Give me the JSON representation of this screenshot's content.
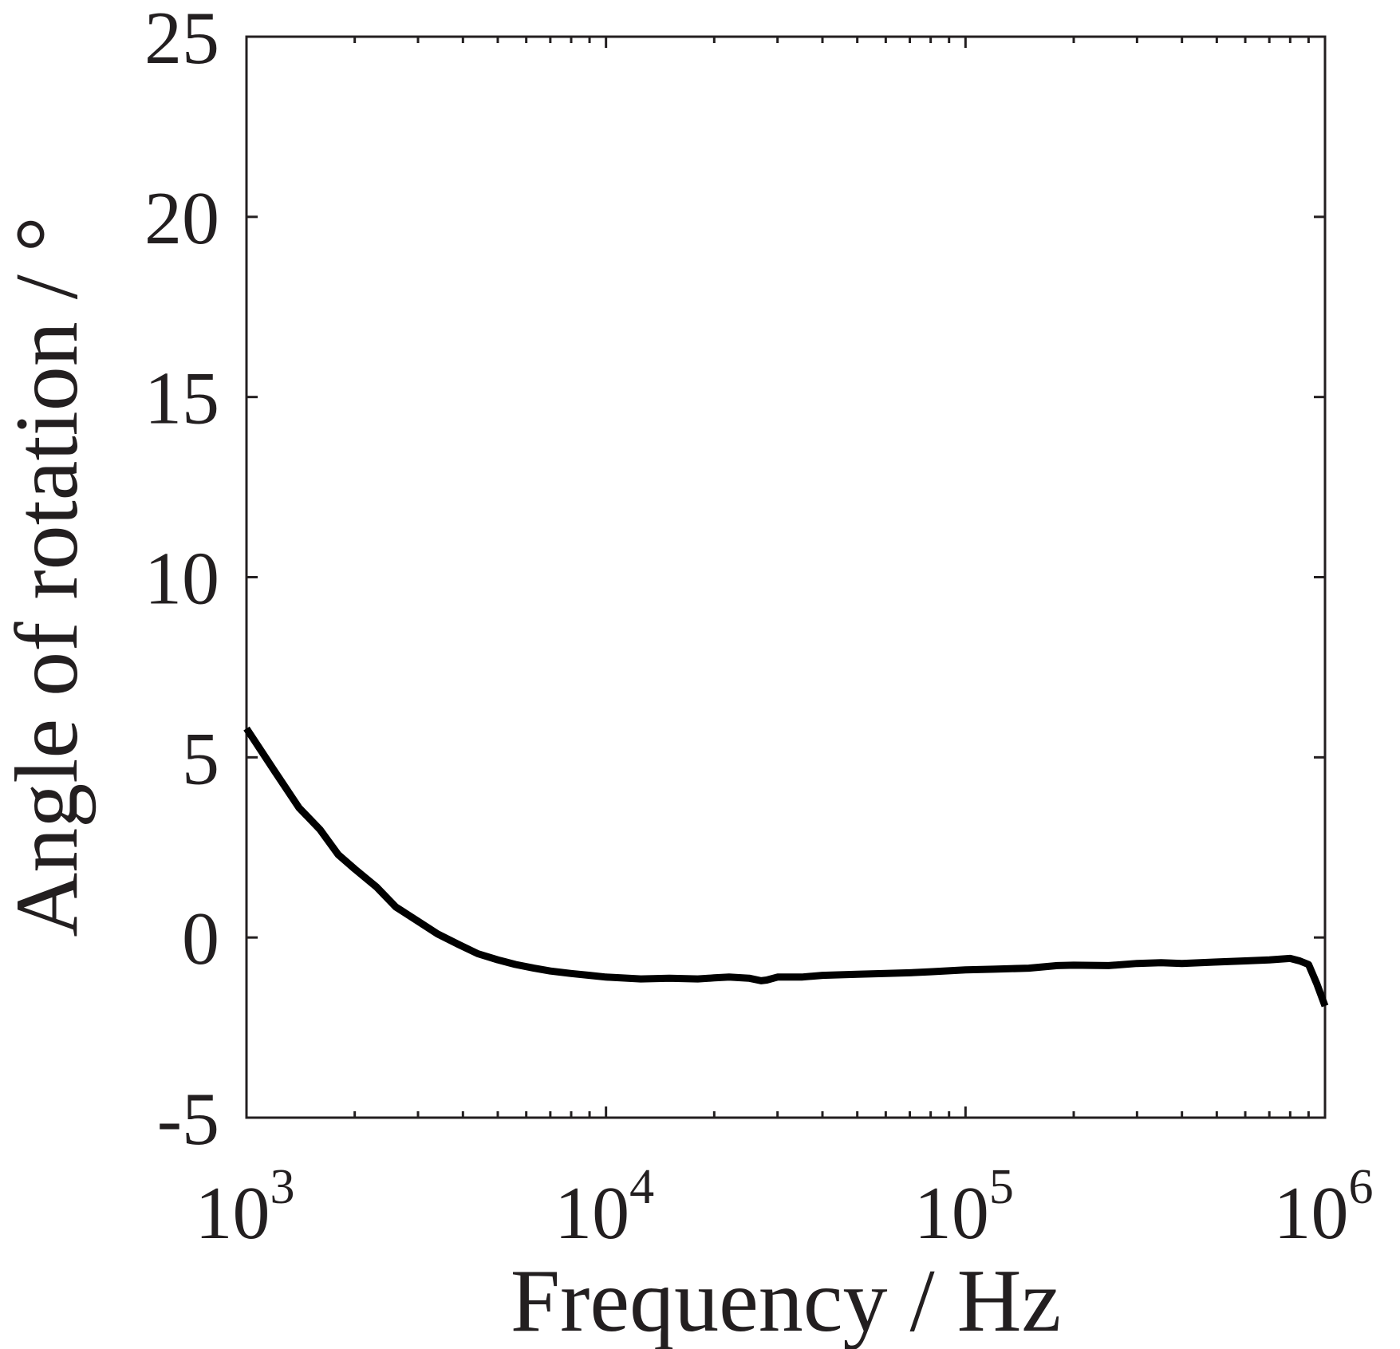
{
  "chart_data": {
    "type": "line",
    "xlabel": "Frequency / Hz",
    "ylabel": "Angle of rotation / °",
    "x_scale": "log",
    "xlim": [
      1000,
      1000000
    ],
    "ylim": [
      -5,
      25
    ],
    "x_ticks": [
      {
        "value": 1000,
        "base": "10",
        "exp": "3"
      },
      {
        "value": 10000,
        "base": "10",
        "exp": "4"
      },
      {
        "value": 100000,
        "base": "10",
        "exp": "5"
      },
      {
        "value": 1000000,
        "base": "10",
        "exp": "6"
      }
    ],
    "y_ticks": [
      {
        "value": -5,
        "label": "-5"
      },
      {
        "value": 0,
        "label": "0"
      },
      {
        "value": 5,
        "label": "5"
      },
      {
        "value": 10,
        "label": "10"
      },
      {
        "value": 15,
        "label": "15"
      },
      {
        "value": 20,
        "label": "20"
      },
      {
        "value": 25,
        "label": "25"
      }
    ],
    "grid": false,
    "legend": "none",
    "series": [
      {
        "color": "#000000",
        "x": [
          1000,
          1200,
          1400,
          1600,
          1800,
          2000,
          2300,
          2600,
          3000,
          3400,
          3900,
          4400,
          5000,
          5600,
          6300,
          7000,
          8000,
          9000,
          10000,
          11000,
          12500,
          15000,
          18000,
          20000,
          22000,
          25000,
          27000,
          28000,
          30000,
          35000,
          40000,
          50000,
          60000,
          70000,
          80000,
          100000,
          120000,
          150000,
          180000,
          200000,
          250000,
          300000,
          350000,
          400000,
          500000,
          600000,
          700000,
          800000,
          850000,
          900000,
          950000,
          1000000
        ],
        "y": [
          5.8,
          4.6,
          3.6,
          3.0,
          2.3,
          1.9,
          1.4,
          0.85,
          0.45,
          0.1,
          -0.2,
          -0.45,
          -0.62,
          -0.75,
          -0.85,
          -0.93,
          -1.0,
          -1.05,
          -1.1,
          -1.12,
          -1.15,
          -1.13,
          -1.15,
          -1.12,
          -1.1,
          -1.13,
          -1.2,
          -1.18,
          -1.1,
          -1.1,
          -1.05,
          -1.02,
          -1.0,
          -0.98,
          -0.95,
          -0.9,
          -0.88,
          -0.85,
          -0.78,
          -0.77,
          -0.78,
          -0.72,
          -0.7,
          -0.72,
          -0.68,
          -0.65,
          -0.62,
          -0.58,
          -0.65,
          -0.75,
          -1.3,
          -1.9
        ]
      }
    ]
  }
}
